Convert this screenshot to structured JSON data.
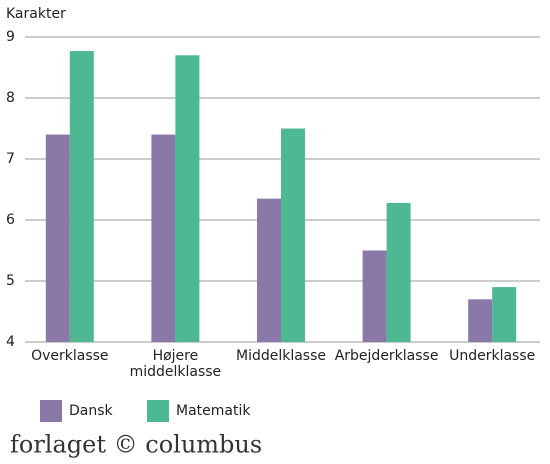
{
  "chart_data": {
    "type": "bar",
    "y_label": "Karakter",
    "categories": [
      "Overklasse",
      "Højere middelklasse",
      "Middelklasse",
      "Arbejderklasse",
      "Underklasse"
    ],
    "series": [
      {
        "name": "Dansk",
        "color": "#8a78a8",
        "values": [
          7.4,
          7.4,
          6.35,
          5.5,
          4.7
        ]
      },
      {
        "name": "Matematik",
        "color": "#4db891",
        "values": [
          8.77,
          8.7,
          7.5,
          6.28,
          4.9
        ]
      }
    ],
    "ylim": [
      4,
      9
    ],
    "yticks": [
      4,
      5,
      6,
      7,
      8,
      9
    ],
    "grid": true,
    "footer": "forlaget © columbus"
  }
}
